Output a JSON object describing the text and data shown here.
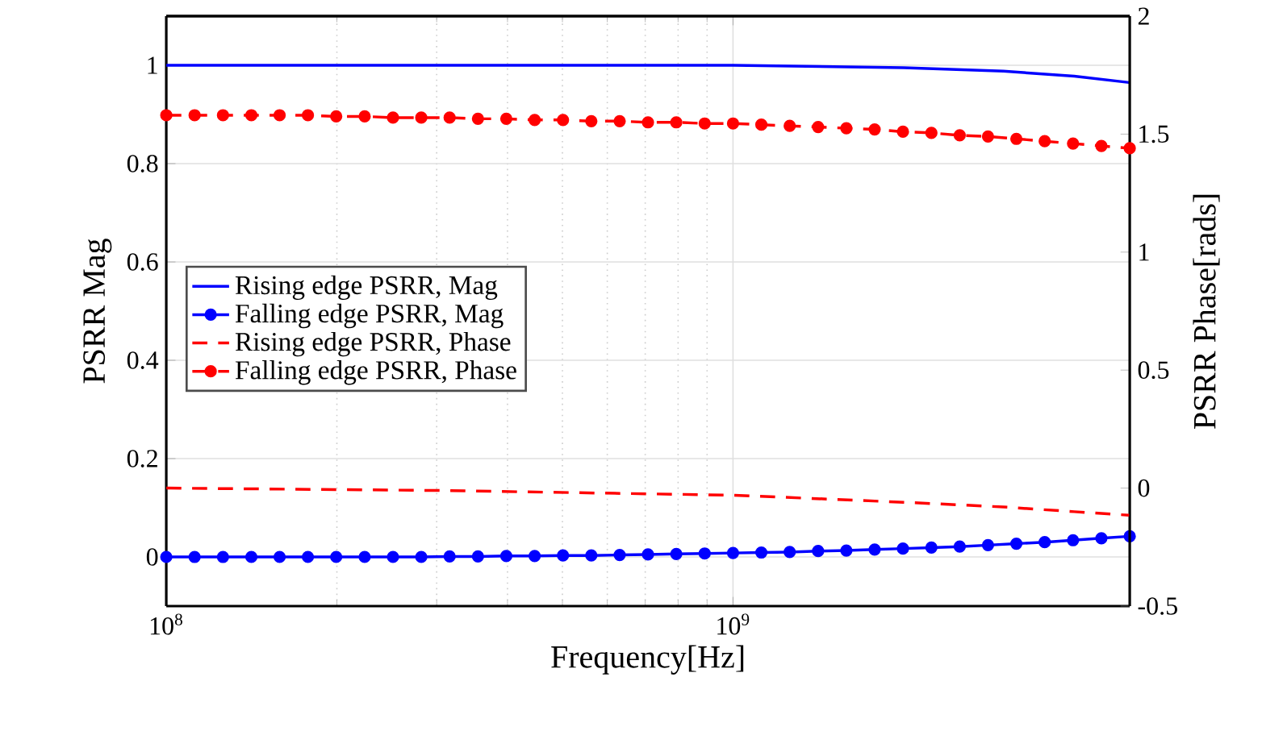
{
  "chart_data": {
    "type": "line",
    "xlabel": "Frequency[Hz]",
    "ylabel": "PSRR Mag",
    "y2label": "PSRR Phase[rads]",
    "log": "x",
    "grid": true,
    "legend": "left",
    "xlim": [
      100000000.0,
      5012000000.0
    ],
    "xticks": [
      {
        "value": 100000000.0,
        "label": "10$^{8}$"
      },
      {
        "value": 1000000000.0,
        "label": "10$^{9}$"
      }
    ],
    "ylim": [
      -0.1,
      1.1
    ],
    "yticks": [
      0,
      0.2,
      0.4,
      0.6,
      0.8,
      1
    ],
    "y2lim": [
      -0.5,
      2
    ],
    "y2ticks": [
      -0.5,
      0,
      0.5,
      1,
      1.5,
      2
    ],
    "series": [
      {
        "name": "Rising edge PSRR, Mag",
        "color": "#0000ff",
        "line_style": "solid",
        "marker": "none",
        "x": [
          100000000.0,
          300000000.0,
          1000000000.0,
          2000000000.0,
          3000000000.0,
          4000000000.0,
          5000000000.0
        ],
        "values": [
          1.0,
          1.0,
          1.0,
          0.995,
          0.988,
          0.978,
          0.965
        ]
      },
      {
        "name": "Falling edge PSRR, Mag",
        "color": "#0000ff",
        "line_style": "solid",
        "marker": "circle",
        "x": [
          100000000.0,
          112200000.0,
          125900000.0,
          141300000.0,
          158500000.0,
          177800000.0,
          199500000.0,
          223900000.0,
          251200000.0,
          281800000.0,
          316200000.0,
          354800000.0,
          398100000.0,
          446700000.0,
          501200000.0,
          562300000.0,
          631000000.0,
          707900000.0,
          794300000.0,
          891300000.0,
          1000000000.0,
          1122000000.0,
          1259000000.0,
          1413000000.0,
          1585000000.0,
          1778000000.0,
          1995000000.0,
          2239000000.0,
          2512000000.0,
          2818000000.0,
          3162000000.0,
          3548000000.0,
          3981000000.0,
          4467000000.0,
          5012000000.0
        ],
        "values": [
          0,
          0,
          0,
          0,
          0,
          0,
          0,
          0,
          0,
          0,
          0.001,
          0.001,
          0.002,
          0.002,
          0.003,
          0.003,
          0.004,
          0.005,
          0.006,
          0.007,
          0.008,
          0.009,
          0.01,
          0.012,
          0.013,
          0.015,
          0.017,
          0.019,
          0.021,
          0.024,
          0.027,
          0.03,
          0.034,
          0.038,
          0.042
        ]
      },
      {
        "name": "Rising edge PSRR, Phase",
        "color": "#ff0000",
        "line_style": "dashed",
        "marker": "none",
        "axis": "y2",
        "x": [
          100000000.0,
          300000000.0,
          1000000000.0,
          2000000000.0,
          3000000000.0,
          4000000000.0,
          5000000000.0
        ],
        "values": [
          0,
          -0.01,
          -0.03,
          -0.06,
          -0.08,
          -0.1,
          -0.115
        ]
      },
      {
        "name": "Falling edge PSRR, Phase",
        "color": "#ff0000",
        "line_style": "dashed",
        "marker": "circle",
        "axis": "y2",
        "x": [
          100000000.0,
          112200000.0,
          125900000.0,
          141300000.0,
          158500000.0,
          177800000.0,
          199500000.0,
          223900000.0,
          251200000.0,
          281800000.0,
          316200000.0,
          354800000.0,
          398100000.0,
          446700000.0,
          501200000.0,
          562300000.0,
          631000000.0,
          707900000.0,
          794300000.0,
          891300000.0,
          1000000000.0,
          1122000000.0,
          1259000000.0,
          1413000000.0,
          1585000000.0,
          1778000000.0,
          1995000000.0,
          2239000000.0,
          2512000000.0,
          2818000000.0,
          3162000000.0,
          3548000000.0,
          3981000000.0,
          4467000000.0,
          5012000000.0
        ],
        "values": [
          1.58,
          1.58,
          1.58,
          1.58,
          1.58,
          1.58,
          1.575,
          1.575,
          1.57,
          1.57,
          1.57,
          1.565,
          1.565,
          1.56,
          1.56,
          1.555,
          1.555,
          1.55,
          1.55,
          1.545,
          1.545,
          1.54,
          1.535,
          1.53,
          1.525,
          1.52,
          1.51,
          1.505,
          1.495,
          1.49,
          1.48,
          1.47,
          1.46,
          1.45,
          1.44
        ]
      }
    ]
  }
}
